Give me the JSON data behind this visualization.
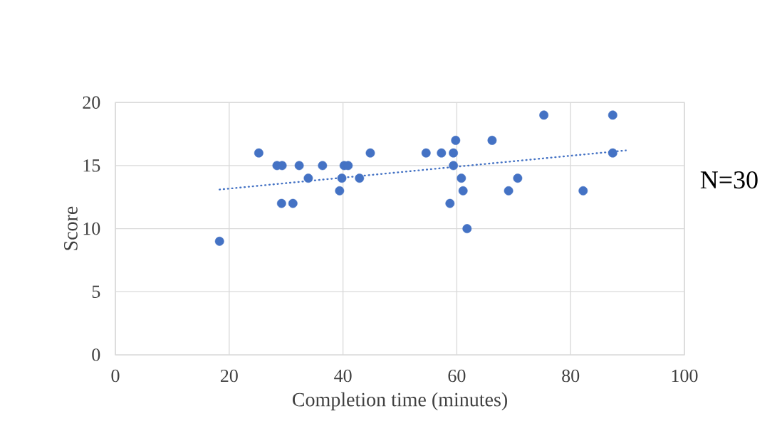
{
  "chart_data": {
    "type": "scatter",
    "xlabel": "Completion time (minutes)",
    "ylabel": "Score",
    "xlim": [
      0,
      100
    ],
    "ylim": [
      0,
      20
    ],
    "xticks": [
      0,
      20,
      40,
      60,
      80,
      100
    ],
    "yticks": [
      0,
      5,
      10,
      15,
      20
    ],
    "grid": true,
    "annotations": [
      "N=30"
    ],
    "series": [
      {
        "color": "#4472c4",
        "marker": "circle",
        "x": [
          18.3,
          25.2,
          28.4,
          29.3,
          29.2,
          32.3,
          31.2,
          33.9,
          36.4,
          39.4,
          39.8,
          40.2,
          40.9,
          42.9,
          44.8,
          54.6,
          57.3,
          58.8,
          59.4,
          59.4,
          59.8,
          60.8,
          61.1,
          61.8,
          66.2,
          69.1,
          70.7,
          75.3,
          82.2,
          87.4,
          87.4
        ],
        "values": [
          9,
          16,
          15,
          15,
          12,
          15,
          12,
          14,
          15,
          13,
          14,
          15,
          15,
          14,
          16,
          16,
          16,
          12,
          16,
          15,
          17,
          14,
          13,
          10,
          17,
          13,
          14,
          19,
          13,
          19,
          16
        ]
      },
      {
        "type": "line",
        "color": "#4472c4",
        "line_style": "dotted",
        "x": [
          18.3,
          89.7
        ],
        "values": [
          13.1,
          16.2
        ]
      }
    ]
  }
}
